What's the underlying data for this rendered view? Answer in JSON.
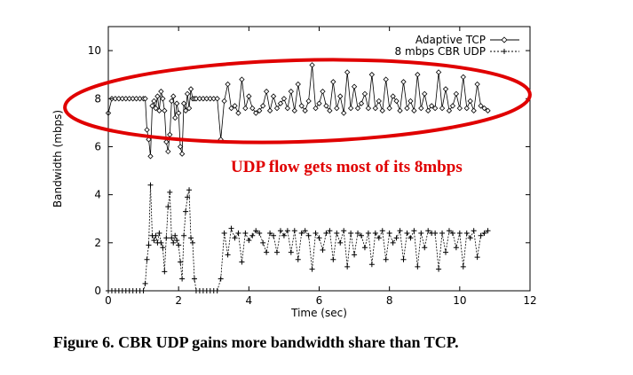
{
  "caption": "Figure 6.  CBR UDP gains more bandwidth share than TCP.",
  "chart_data": {
    "type": "line",
    "title": "",
    "xlabel": "Time (sec)",
    "ylabel": "Bandwidth (mbps)",
    "xlim": [
      0,
      12
    ],
    "ylim": [
      0,
      11
    ],
    "xticks": [
      0,
      2,
      4,
      6,
      8,
      10,
      12
    ],
    "yticks": [
      0,
      2,
      4,
      6,
      8,
      10
    ],
    "grid": false,
    "legend_position": "top-right",
    "annotation": "UDP flow gets most of its 8mbps",
    "annotation_color": "#e00000",
    "highlight_ellipse_color": "#e00000",
    "series": [
      {
        "name": "Adaptive TCP",
        "marker": "diamond",
        "color": "#000000",
        "x": [
          0.0,
          0.1,
          0.2,
          0.3,
          0.4,
          0.5,
          0.6,
          0.7,
          0.8,
          0.9,
          1.0,
          1.05,
          1.1,
          1.15,
          1.2,
          1.25,
          1.3,
          1.35,
          1.4,
          1.45,
          1.5,
          1.55,
          1.6,
          1.65,
          1.7,
          1.75,
          1.8,
          1.85,
          1.9,
          1.95,
          2.0,
          2.05,
          2.1,
          2.15,
          2.2,
          2.25,
          2.3,
          2.35,
          2.4,
          2.45,
          2.5,
          2.6,
          2.7,
          2.8,
          2.9,
          3.0,
          3.1,
          3.2,
          3.3,
          3.4,
          3.5,
          3.6,
          3.7,
          3.8,
          3.9,
          4.0,
          4.1,
          4.2,
          4.3,
          4.4,
          4.5,
          4.6,
          4.7,
          4.8,
          4.9,
          5.0,
          5.1,
          5.2,
          5.3,
          5.4,
          5.5,
          5.6,
          5.7,
          5.8,
          5.9,
          6.0,
          6.1,
          6.2,
          6.3,
          6.4,
          6.5,
          6.6,
          6.7,
          6.8,
          6.9,
          7.0,
          7.1,
          7.2,
          7.3,
          7.4,
          7.5,
          7.6,
          7.7,
          7.8,
          7.9,
          8.0,
          8.1,
          8.2,
          8.3,
          8.4,
          8.5,
          8.6,
          8.7,
          8.8,
          8.9,
          9.0,
          9.1,
          9.2,
          9.3,
          9.4,
          9.5,
          9.6,
          9.7,
          9.8,
          9.9,
          10.0,
          10.1,
          10.2,
          10.3,
          10.4,
          10.5,
          10.6,
          10.7,
          10.8
        ],
        "y": [
          7.4,
          8.0,
          8.0,
          8.0,
          8.0,
          8.0,
          8.0,
          8.0,
          8.0,
          8.0,
          8.0,
          8.0,
          6.7,
          6.3,
          5.6,
          7.7,
          7.9,
          7.6,
          8.1,
          7.5,
          8.3,
          8.0,
          7.5,
          6.2,
          5.8,
          6.5,
          7.9,
          8.1,
          7.2,
          7.8,
          7.4,
          6.0,
          5.7,
          7.8,
          7.5,
          8.2,
          7.6,
          8.4,
          8.0,
          8.0,
          8.0,
          8.0,
          8.0,
          8.0,
          8.0,
          8.0,
          8.0,
          6.3,
          7.9,
          8.6,
          7.6,
          7.7,
          7.4,
          8.8,
          7.6,
          8.1,
          7.6,
          7.4,
          7.5,
          7.7,
          8.3,
          7.5,
          8.1,
          7.6,
          7.8,
          8.0,
          7.6,
          8.3,
          7.5,
          8.6,
          7.7,
          7.5,
          7.9,
          9.4,
          7.6,
          7.8,
          8.3,
          7.7,
          7.5,
          8.7,
          7.6,
          8.1,
          7.4,
          9.1,
          7.6,
          8.5,
          7.6,
          7.8,
          8.2,
          7.6,
          9.0,
          7.6,
          7.9,
          7.5,
          8.8,
          7.6,
          8.1,
          7.9,
          7.5,
          8.7,
          7.6,
          7.9,
          7.5,
          9.0,
          7.6,
          8.2,
          7.5,
          7.7,
          7.6,
          9.1,
          7.6,
          8.4,
          7.5,
          7.7,
          8.2,
          7.6,
          8.9,
          7.6,
          7.9,
          7.5,
          8.6,
          7.7,
          7.6,
          7.5
        ]
      },
      {
        "name": "8 mbps CBR UDP",
        "marker": "plus",
        "color": "#000000",
        "x": [
          0.0,
          0.1,
          0.2,
          0.3,
          0.4,
          0.5,
          0.6,
          0.7,
          0.8,
          0.9,
          1.0,
          1.05,
          1.1,
          1.15,
          1.2,
          1.25,
          1.3,
          1.35,
          1.4,
          1.45,
          1.5,
          1.55,
          1.6,
          1.65,
          1.7,
          1.75,
          1.8,
          1.85,
          1.9,
          1.95,
          2.0,
          2.05,
          2.1,
          2.15,
          2.2,
          2.25,
          2.3,
          2.35,
          2.4,
          2.45,
          2.5,
          2.6,
          2.7,
          2.8,
          2.9,
          3.0,
          3.1,
          3.2,
          3.3,
          3.4,
          3.5,
          3.6,
          3.7,
          3.8,
          3.9,
          4.0,
          4.1,
          4.2,
          4.3,
          4.4,
          4.5,
          4.6,
          4.7,
          4.8,
          4.9,
          5.0,
          5.1,
          5.2,
          5.3,
          5.4,
          5.5,
          5.6,
          5.7,
          5.8,
          5.9,
          6.0,
          6.1,
          6.2,
          6.3,
          6.4,
          6.5,
          6.6,
          6.7,
          6.8,
          6.9,
          7.0,
          7.1,
          7.2,
          7.3,
          7.4,
          7.5,
          7.6,
          7.7,
          7.8,
          7.9,
          8.0,
          8.1,
          8.2,
          8.3,
          8.4,
          8.5,
          8.6,
          8.7,
          8.8,
          8.9,
          9.0,
          9.1,
          9.2,
          9.3,
          9.4,
          9.5,
          9.6,
          9.7,
          9.8,
          9.9,
          10.0,
          10.1,
          10.2,
          10.3,
          10.4,
          10.5,
          10.6,
          10.7,
          10.8
        ],
        "y": [
          0.0,
          0.0,
          0.0,
          0.0,
          0.0,
          0.0,
          0.0,
          0.0,
          0.0,
          0.0,
          0.0,
          0.3,
          1.3,
          1.9,
          4.4,
          2.3,
          2.1,
          2.3,
          2.0,
          2.4,
          2.0,
          1.8,
          0.8,
          2.2,
          3.5,
          4.1,
          2.2,
          2.0,
          2.3,
          2.1,
          1.9,
          1.2,
          0.5,
          2.3,
          3.3,
          3.9,
          4.2,
          2.2,
          2.0,
          0.5,
          0.0,
          0.0,
          0.0,
          0.0,
          0.0,
          0.0,
          0.0,
          0.5,
          2.4,
          1.5,
          2.6,
          2.2,
          2.4,
          1.2,
          2.4,
          2.1,
          2.3,
          2.5,
          2.4,
          2.0,
          1.6,
          2.4,
          2.3,
          1.6,
          2.5,
          2.3,
          2.5,
          1.6,
          2.5,
          1.3,
          2.4,
          2.5,
          2.3,
          0.9,
          2.4,
          2.2,
          1.7,
          2.4,
          2.5,
          1.3,
          2.4,
          2.0,
          2.5,
          1.0,
          2.4,
          1.5,
          2.4,
          2.3,
          1.8,
          2.4,
          1.1,
          2.4,
          2.2,
          2.5,
          1.3,
          2.4,
          2.0,
          2.2,
          2.5,
          1.3,
          2.4,
          2.2,
          2.5,
          1.0,
          2.4,
          1.8,
          2.5,
          2.4,
          2.4,
          0.9,
          2.4,
          1.6,
          2.5,
          2.4,
          1.8,
          2.4,
          1.0,
          2.4,
          2.2,
          2.5,
          1.4,
          2.3,
          2.4,
          2.5
        ]
      }
    ]
  }
}
